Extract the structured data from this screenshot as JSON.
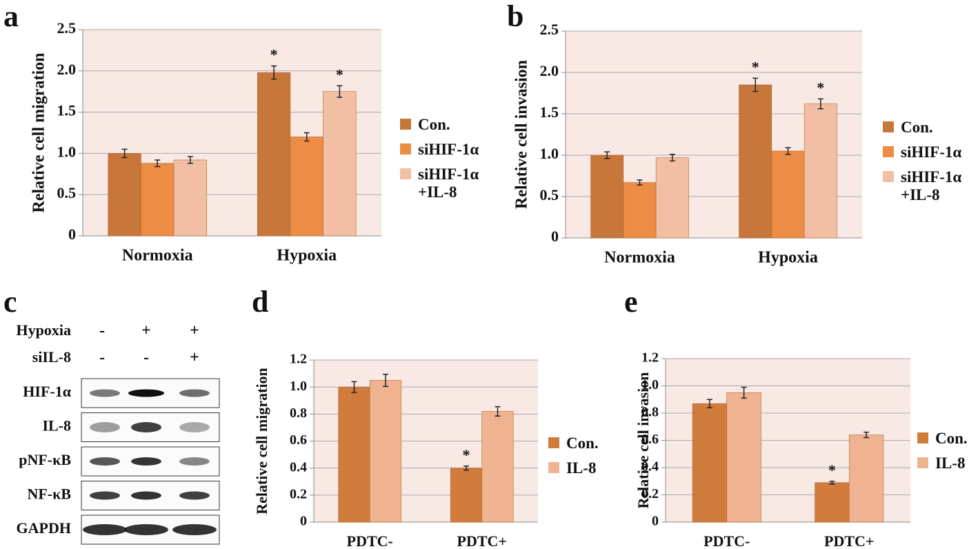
{
  "chart_data": [
    {
      "type": "bar",
      "panel": "a",
      "y_label": "Relative cell migration",
      "categories": [
        "Normoxia",
        "Hypoxia"
      ],
      "series": [
        {
          "name": "Con.",
          "color": "#c8773a",
          "values": [
            1.0,
            1.98
          ],
          "errors": [
            0.05,
            0.08
          ],
          "annotations": [
            null,
            "*"
          ]
        },
        {
          "name": "siHIF-1α",
          "color": "#ec8c45",
          "values": [
            0.88,
            1.2
          ],
          "errors": [
            0.04,
            0.05
          ],
          "annotations": [
            null,
            null
          ]
        },
        {
          "name": "siHIF-1α\n+IL-8",
          "color": "#f2bfa4",
          "values": [
            0.92,
            1.75
          ],
          "errors": [
            0.04,
            0.07
          ],
          "annotations": [
            null,
            "*"
          ]
        }
      ],
      "ylim": [
        0,
        2.5
      ],
      "yticks": [
        0,
        0.5,
        {
          "value": 1,
          "label": "1.0"
        },
        1.5,
        {
          "value": 2,
          "label": "2.0"
        },
        2.5
      ],
      "grid": true
    },
    {
      "type": "bar",
      "panel": "b",
      "y_label": "Relative cell invasion",
      "categories": [
        "Normoxia",
        "Hypoxia"
      ],
      "series": [
        {
          "name": "Con.",
          "color": "#c8773a",
          "values": [
            1.0,
            1.85
          ],
          "errors": [
            0.04,
            0.08
          ],
          "annotations": [
            null,
            "*"
          ]
        },
        {
          "name": "siHIF-1α",
          "color": "#ec8c45",
          "values": [
            0.67,
            1.05
          ],
          "errors": [
            0.03,
            0.04
          ],
          "annotations": [
            null,
            null
          ]
        },
        {
          "name": "siHIF-1α\n+IL-8",
          "color": "#f2bfa4",
          "values": [
            0.97,
            1.62
          ],
          "errors": [
            0.04,
            0.06
          ],
          "annotations": [
            null,
            "*"
          ]
        }
      ],
      "ylim": [
        0,
        2.5
      ],
      "yticks": [
        0,
        0.5,
        {
          "value": 1,
          "label": "1.0"
        },
        1.5,
        {
          "value": 2,
          "label": "2.0"
        },
        2.5
      ],
      "grid": true
    },
    {
      "type": "bar",
      "panel": "d",
      "y_label": "Relative cell migration",
      "categories": [
        "PDTC-",
        "PDTC+"
      ],
      "series": [
        {
          "name": "Con.",
          "color": "#d07c3c",
          "values": [
            1.0,
            0.4
          ],
          "errors": [
            0.04,
            0.015
          ],
          "annotations": [
            null,
            "*"
          ]
        },
        {
          "name": "IL-8",
          "color": "#f0b391",
          "values": [
            1.05,
            0.82
          ],
          "errors": [
            0.045,
            0.035
          ],
          "annotations": [
            null,
            null
          ]
        }
      ],
      "ylim": [
        0,
        1.2
      ],
      "yticks": [
        0,
        0.2,
        0.4,
        0.6,
        0.8,
        {
          "value": 1,
          "label": "1.0"
        },
        1.2
      ],
      "grid": true
    },
    {
      "type": "bar",
      "panel": "e",
      "y_label": "Relative cell invasion",
      "categories": [
        "PDTC-",
        "PDTC+"
      ],
      "series": [
        {
          "name": "Con.",
          "color": "#d07c3c",
          "values": [
            0.87,
            0.29
          ],
          "errors": [
            0.03,
            0.01
          ],
          "annotations": [
            null,
            "*"
          ]
        },
        {
          "name": "IL-8",
          "color": "#f0b391",
          "values": [
            0.95,
            0.64
          ],
          "errors": [
            0.04,
            0.02
          ],
          "annotations": [
            null,
            null
          ]
        }
      ],
      "ylim": [
        0,
        1.2
      ],
      "yticks": [
        0,
        0.2,
        0.4,
        0.6,
        0.8,
        {
          "value": 1,
          "label": "1.0"
        },
        1.2
      ],
      "grid": true
    }
  ],
  "blot": {
    "panel": "c",
    "conditions": [
      {
        "label": "Hypoxia",
        "marks": [
          "-",
          "+",
          "+"
        ]
      },
      {
        "label": "siIL-8",
        "marks": [
          "-",
          "-",
          "+"
        ]
      }
    ],
    "rows": [
      "HIF-1α",
      "IL-8",
      "pNF-κB",
      "NF-κB",
      "GAPDH"
    ]
  }
}
